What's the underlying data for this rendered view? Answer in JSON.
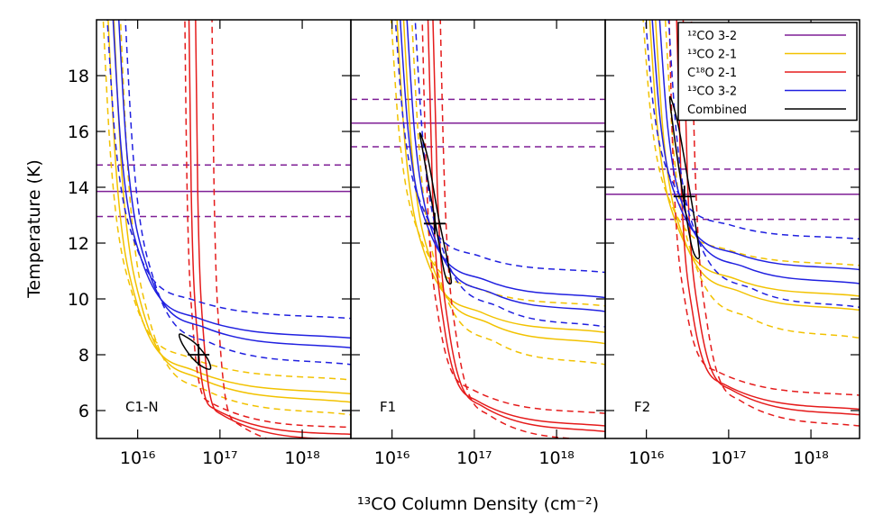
{
  "chart_data": {
    "type": "line",
    "y_label": "Temperature (K)",
    "x_label": "¹³CO Column Density (cm⁻²)",
    "log_x": true,
    "xlim": [
      3160000000000000.0,
      3.9e+18
    ],
    "ylim": [
      5,
      20
    ],
    "xticks": [
      {
        "value": 1e+16,
        "label": "10¹⁶"
      },
      {
        "value": 1e+17,
        "label": "10¹⁷"
      },
      {
        "value": 1e+18,
        "label": "10¹⁸"
      }
    ],
    "yticks": [
      6,
      8,
      10,
      12,
      14,
      16,
      18
    ],
    "legend_position": "upper right",
    "series": [
      {
        "name": "¹²CO 3-2",
        "color": "#7f1f96"
      },
      {
        "name": "¹³CO 2-1",
        "color": "#f2c200"
      },
      {
        "name": "C¹⁸O 2-1",
        "color": "#e51b1b"
      },
      {
        "name": "¹³CO 3-2",
        "color": "#2020e0"
      },
      {
        "name": "Combined",
        "color": "#000000"
      }
    ],
    "panels": [
      {
        "label": "C1-N",
        "series": [
          {
            "value": 13.85,
            "lower": 12.95,
            "upper": 14.8
          },
          {
            "curves": [
              {
                "dashed": true,
                "x": [
                  3390000000000000.0,
                  4790000000000000.0,
                  8320000000000000.0,
                  4.17e+16,
                  3.9e+18
                ],
                "values": [
                  23.03,
                  14.74,
                  10.33,
                  7.91,
                  7.1
                ]
              },
              {
                "dashed": false,
                "x": [
                  3890000000000000.0,
                  5500000000000000.0,
                  9550000000000000.0,
                  4.79e+16,
                  3.9e+18
                ],
                "values": [
                  23.15,
                  14.53,
                  9.95,
                  7.44,
                  6.6
                ]
              },
              {
                "dashed": false,
                "x": [
                  4570000000000000.0,
                  6460000000000000.0,
                  1.12e+16,
                  5.62e+16,
                  3.9e+18
                ],
                "values": [
                  23.22,
                  14.41,
                  9.73,
                  7.16,
                  6.3
                ]
              },
              {
                "dashed": true,
                "x": [
                  5500000000000000.0,
                  7760000000000000.0,
                  1.35e+16,
                  6.76e+16,
                  3.9e+18
                ],
                "values": [
                  23.33,
                  14.23,
                  9.39,
                  6.73,
                  5.85
                ]
              }
            ]
          },
          {
            "curves": [
              {
                "dashed": true,
                "x": [
                  3.63e+16,
                  3.98e+16,
                  4.68e+16,
                  7.41e+16,
                  3.9e+18
                ],
                "values": [
                  23.43,
                  14.04,
                  9.05,
                  6.31,
                  5.4
                ]
              },
              {
                "dashed": false,
                "x": [
                  4.07e+16,
                  4.47e+16,
                  5.25e+16,
                  8.32e+16,
                  3.9e+18
                ],
                "values": [
                  23.49,
                  13.94,
                  8.86,
                  6.08,
                  5.15
                ]
              },
              {
                "dashed": false,
                "x": [
                  4.9e+16,
                  5.37e+16,
                  6.31e+16,
                  1e+17,
                  3.9e+18
                ],
                "values": [
                  23.54,
                  13.86,
                  8.71,
                  5.89,
                  4.95
                ]
              },
              {
                "dashed": true,
                "x": [
                  7.76e+16,
                  8.51e+16,
                  1e+17,
                  1.58e+17,
                  3.9e+18
                ],
                "values": [
                  23.62,
                  13.72,
                  8.45,
                  5.56,
                  4.6
                ]
              }
            ]
          },
          {
            "curves": [
              {
                "dashed": true,
                "x": [
                  3800000000000000.0,
                  5370000000000000.0,
                  9330000000000000.0,
                  4.68e+16,
                  3.9e+18
                ],
                "values": [
                  22.51,
                  15.63,
                  11.98,
                  9.97,
                  9.3
                ]
              },
              {
                "dashed": false,
                "x": [
                  4470000000000000.0,
                  6310000000000000.0,
                  1.1e+16,
                  5.5e+16,
                  3.9e+18
                ],
                "values": [
                  22.68,
                  15.35,
                  11.45,
                  9.31,
                  8.6
                ]
              },
              {
                "dashed": false,
                "x": [
                  5250000000000000.0,
                  7410000000000000.0,
                  1.29e+16,
                  6.46e+16,
                  3.9e+18
                ],
                "values": [
                  22.76,
                  15.21,
                  11.19,
                  8.98,
                  8.25
                ]
              },
              {
                "dashed": true,
                "x": [
                  6310000000000000.0,
                  8910000000000000.0,
                  1.55e+16,
                  7.76e+16,
                  3.9e+18
                ],
                "values": [
                  22.9,
                  14.96,
                  10.74,
                  8.42,
                  7.65
                ]
              }
            ]
          },
          {
            "x": 5.5e+16,
            "y": 8.0,
            "contour_x": [
              3.21e+16,
              3.98e+16,
              5.25e+16,
              7.08e+16,
              7.67e+16,
              6.31e+16,
              4.79e+16,
              3.55e+16
            ],
            "contour_y": [
              8.73,
              8.62,
              8.35,
              7.85,
              7.5,
              7.55,
              7.83,
              8.35
            ]
          }
        ]
      },
      {
        "label": "F1",
        "series": [
          {
            "value": 16.3,
            "lower": 15.45,
            "upper": 17.15
          },
          {
            "curves": [
              {
                "dashed": true,
                "x": [
                  8710000000000000.0,
                  1.23e+16,
                  2.14e+16,
                  1.07e+17,
                  3.9e+18
                ],
                "values": [
                  22.41,
                  15.82,
                  12.31,
                  10.39,
                  9.75
                ]
              },
              {
                "dashed": false,
                "x": [
                  1.02e+16,
                  1.45e+16,
                  2.51e+16,
                  1.26e+17,
                  3.9e+18
                ],
                "values": [
                  22.63,
                  15.43,
                  11.6,
                  9.5,
                  8.8
                ]
              },
              {
                "dashed": false,
                "x": [
                  1.23e+16,
                  1.74e+16,
                  3.02e+16,
                  1.51e+17,
                  3.9e+18
                ],
                "values": [
                  22.73,
                  15.27,
                  11.3,
                  9.13,
                  8.4
                ]
              },
              {
                "dashed": true,
                "x": [
                  1.55e+16,
                  2.19e+16,
                  3.8e+16,
                  1.91e+17,
                  3.9e+18
                ],
                "values": [
                  22.9,
                  14.96,
                  10.74,
                  8.42,
                  7.65
                ]
              }
            ]
          },
          {
            "curves": [
              {
                "dashed": true,
                "x": [
                  2.19e+16,
                  2.63e+16,
                  3.63e+16,
                  9.12e+16,
                  3.9e+18
                ],
                "values": [
                  23.31,
                  14.25,
                  9.43,
                  6.78,
                  5.9
                ]
              },
              {
                "dashed": false,
                "x": [
                  2.57e+16,
                  3.09e+16,
                  4.27e+16,
                  1.07e+17,
                  3.9e+18
                ],
                "values": [
                  23.42,
                  14.06,
                  9.09,
                  6.36,
                  5.45
                ]
              },
              {
                "dashed": false,
                "x": [
                  2.95e+16,
                  3.55e+16,
                  4.9e+16,
                  1.23e+17,
                  3.9e+18
                ],
                "values": [
                  23.47,
                  13.98,
                  8.94,
                  6.17,
                  5.25
                ]
              },
              {
                "dashed": true,
                "x": [
                  3.63e+16,
                  4.37e+16,
                  6.03e+16,
                  1.51e+17,
                  3.9e+18
                ],
                "values": [
                  23.55,
                  13.84,
                  8.68,
                  5.84,
                  4.9
                ]
              }
            ]
          },
          {
            "curves": [
              {
                "dashed": true,
                "x": [
                  9770000000000000.0,
                  1.38e+16,
                  2.4e+16,
                  1.2e+17,
                  3.9e+18
                ],
                "values": [
                  22.13,
                  16.31,
                  13.21,
                  11.52,
                  10.95
                ]
              },
              {
                "dashed": false,
                "x": [
                  1.12e+16,
                  1.58e+16,
                  2.75e+16,
                  1.38e+17,
                  3.9e+18
                ],
                "values": [
                  22.34,
                  15.94,
                  12.54,
                  10.67,
                  10.05
                ]
              },
              {
                "dashed": false,
                "x": [
                  1.35e+16,
                  1.91e+16,
                  3.31e+16,
                  1.66e+17,
                  3.9e+18
                ],
                "values": [
                  22.46,
                  15.74,
                  12.16,
                  10.2,
                  9.55
                ]
              },
              {
                "dashed": true,
                "x": [
                  1.7e+16,
                  2.4e+16,
                  4.17e+16,
                  2.09e+17,
                  3.9e+18
                ],
                "values": [
                  22.59,
                  15.51,
                  11.75,
                  9.69,
                  9.0
                ]
              }
            ]
          },
          {
            "x": 3.3e+16,
            "y": 12.7,
            "contour_x": [
              2.19e+16,
              2.75e+16,
              3.63e+16,
              4.79e+16,
              5.25e+16,
              4.37e+16,
              3.16e+16,
              2.4e+16
            ],
            "contour_y": [
              15.94,
              15.0,
              13.0,
              11.3,
              10.58,
              10.9,
              13.2,
              15.2
            ]
          }
        ]
      },
      {
        "label": "F2",
        "series": [
          {
            "value": 13.75,
            "lower": 12.85,
            "upper": 14.65
          },
          {
            "curves": [
              {
                "dashed": true,
                "x": [
                  8130000000000000.0,
                  1.15e+16,
                  2e+16,
                  1e+17,
                  3.9e+18
                ],
                "values": [
                  22.07,
                  16.41,
                  13.4,
                  11.75,
                  11.2
                ]
              },
              {
                "dashed": false,
                "x": [
                  9770000000000000.0,
                  1.38e+16,
                  2.4e+16,
                  1.2e+17,
                  3.9e+18
                ],
                "values": [
                  22.33,
                  15.96,
                  12.58,
                  10.72,
                  10.1
                ]
              },
              {
                "dashed": false,
                "x": [
                  1.15e+16,
                  1.62e+16,
                  2.82e+16,
                  1.41e+17,
                  3.9e+18
                ],
                "values": [
                  22.44,
                  15.76,
                  12.2,
                  10.25,
                  9.6
                ]
              },
              {
                "dashed": true,
                "x": [
                  1.51e+16,
                  2.14e+16,
                  3.72e+16,
                  1.86e+17,
                  3.9e+18
                ],
                "values": [
                  22.68,
                  15.35,
                  11.45,
                  9.31,
                  8.6
                ]
              }
            ]
          },
          {
            "curves": [
              {
                "dashed": true,
                "x": [
                  1.78e+16,
                  2.14e+16,
                  2.95e+16,
                  7.41e+16,
                  3.9e+18
                ],
                "values": [
                  23.16,
                  14.51,
                  9.91,
                  7.39,
                  6.55
                ]
              },
              {
                "dashed": false,
                "x": [
                  2.19e+16,
                  2.63e+16,
                  3.63e+16,
                  9.12e+16,
                  3.9e+18
                ],
                "values": [
                  23.28,
                  14.31,
                  9.54,
                  6.92,
                  6.05
                ]
              },
              {
                "dashed": false,
                "x": [
                  2.63e+16,
                  3.16e+16,
                  4.37e+16,
                  1.1e+17,
                  3.9e+18
                ],
                "values": [
                  23.33,
                  14.23,
                  9.39,
                  6.73,
                  5.85
                ]
              },
              {
                "dashed": true,
                "x": [
                  3.31e+16,
                  3.98e+16,
                  5.5e+16,
                  1.38e+17,
                  3.9e+18
                ],
                "values": [
                  23.42,
                  14.06,
                  9.09,
                  6.36,
                  5.45
                ]
              }
            ]
          },
          {
            "curves": [
              {
                "dashed": true,
                "x": [
                  8710000000000000.0,
                  1.23e+16,
                  2.14e+16,
                  1.07e+17,
                  3.9e+18
                ],
                "values": [
                  21.84,
                  16.8,
                  14.11,
                  12.64,
                  12.15
                ]
              },
              {
                "dashed": false,
                "x": [
                  1.05e+16,
                  1.48e+16,
                  2.57e+16,
                  1.29e+17,
                  3.9e+18
                ],
                "values": [
                  22.1,
                  16.35,
                  13.29,
                  11.61,
                  11.05
                ]
              },
              {
                "dashed": false,
                "x": [
                  1.29e+16,
                  1.82e+16,
                  3.16e+16,
                  1.58e+17,
                  3.9e+18
                ],
                "values": [
                  22.22,
                  16.14,
                  12.91,
                  11.14,
                  10.55
                ]
              },
              {
                "dashed": true,
                "x": [
                  1.66e+16,
                  2.34e+16,
                  4.07e+16,
                  2.04e+17,
                  3.9e+18
                ],
                "values": [
                  22.42,
                  15.8,
                  12.28,
                  10.34,
                  9.7
                ]
              }
            ]
          },
          {
            "x": 2.9e+16,
            "y": 13.67,
            "contour_x": [
              1.95e+16,
              2.45e+16,
              3.31e+16,
              4.17e+16,
              4.37e+16,
              3.55e+16,
              2.63e+16,
              2.04e+16
            ],
            "contour_y": [
              17.24,
              16.2,
              14.0,
              12.2,
              11.46,
              11.9,
              14.2,
              16.5
            ]
          }
        ]
      }
    ]
  }
}
